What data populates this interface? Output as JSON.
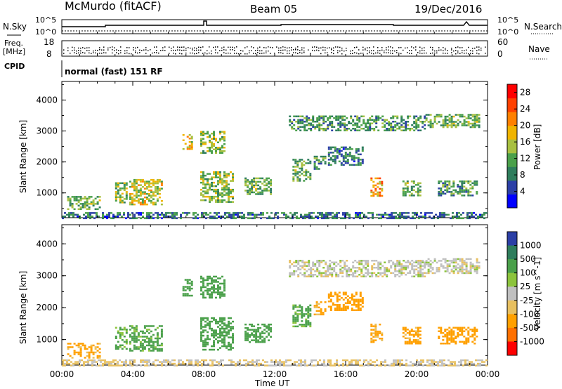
{
  "header": {
    "title": "McMurdo (fitACF)",
    "beam": "Beam 05",
    "date": "19/Dec/2016"
  },
  "aux_panels": {
    "nsky_label": "N.Sky",
    "nsearch_label": "N.Search",
    "nsky_ticks": [
      "10^5",
      "10^0"
    ],
    "nsearch_ticks": [
      "10^5",
      "10^0"
    ],
    "freq_label_1": "Freq.",
    "freq_label_2": "[MHz]",
    "freq_ticks": [
      "18",
      "8"
    ],
    "nave_label": "Nave",
    "nave_ticks": [
      "60",
      "0"
    ],
    "cpid_label": "CPID",
    "cpid_value": "normal (fast) 151 RF"
  },
  "colors": {
    "power_scale": [
      "#0000ff",
      "#2b3fa6",
      "#2e7d5c",
      "#4aa04a",
      "#a8c040",
      "#f0b400",
      "#ff8000",
      "#ff4000",
      "#ff0000"
    ],
    "velocity_scale": [
      "#2b3fa6",
      "#2e7d5c",
      "#4aa04a",
      "#8cc43c",
      "#c0c0c0",
      "#e8c060",
      "#ffa000",
      "#ff7000",
      "#ff0000"
    ]
  },
  "chart_data": [
    {
      "type": "heatmap",
      "name": "power",
      "ylabel": "Slant Range [km]",
      "yticks": [
        "1000",
        "2000",
        "3000",
        "4000"
      ],
      "ylim": [
        200,
        4600
      ],
      "xlim": [
        "00:00",
        "24:00"
      ],
      "colorbar_label": "Power [dB]",
      "colorbar_ticks": [
        "4",
        "8",
        "12",
        "16",
        "20",
        "24",
        "28"
      ],
      "colorbar_range": [
        0,
        30
      ],
      "echo_regions": [
        {
          "t0": 0.3,
          "t1": 2.2,
          "r0": 450,
          "r1": 900,
          "value": 12
        },
        {
          "t0": 3.0,
          "t1": 3.6,
          "r0": 700,
          "r1": 1400,
          "value": 14
        },
        {
          "t0": 3.8,
          "t1": 5.6,
          "r0": 650,
          "r1": 1450,
          "value": 16
        },
        {
          "t0": 6.8,
          "t1": 7.3,
          "r0": 2400,
          "r1": 2900,
          "value": 18
        },
        {
          "t0": 7.8,
          "t1": 9.2,
          "r0": 2300,
          "r1": 3000,
          "value": 14
        },
        {
          "t0": 7.8,
          "t1": 9.6,
          "r0": 700,
          "r1": 1700,
          "value": 14
        },
        {
          "t0": 10.3,
          "t1": 11.8,
          "r0": 950,
          "r1": 1500,
          "value": 12
        },
        {
          "t0": 12.8,
          "t1": 20.5,
          "r0": 3000,
          "r1": 3500,
          "value": 10
        },
        {
          "t0": 13.0,
          "t1": 14.0,
          "r0": 1400,
          "r1": 2100,
          "value": 12
        },
        {
          "t0": 14.2,
          "t1": 14.8,
          "r0": 1800,
          "r1": 2200,
          "value": 10
        },
        {
          "t0": 15.0,
          "t1": 17.0,
          "r0": 1900,
          "r1": 2500,
          "value": 8
        },
        {
          "t0": 17.4,
          "t1": 18.0,
          "r0": 900,
          "r1": 1500,
          "value": 20
        },
        {
          "t0": 19.2,
          "t1": 20.2,
          "r0": 900,
          "r1": 1400,
          "value": 12
        },
        {
          "t0": 20.5,
          "t1": 23.5,
          "r0": 3100,
          "r1": 3550,
          "value": 12
        },
        {
          "t0": 21.2,
          "t1": 23.4,
          "r0": 900,
          "r1": 1400,
          "value": 10
        },
        {
          "t0": 0.0,
          "t1": 24.0,
          "r0": 200,
          "r1": 380,
          "value": 8
        }
      ]
    },
    {
      "type": "heatmap",
      "name": "velocity",
      "ylabel": "Slant Range [km]",
      "yticks": [
        "1000",
        "2000",
        "3000",
        "4000"
      ],
      "ylim": [
        200,
        4600
      ],
      "xlim": [
        "00:00",
        "24:00"
      ],
      "xticks": [
        "00:00",
        "04:00",
        "08:00",
        "12:00",
        "16:00",
        "20:00",
        "00:00"
      ],
      "xlabel": "Time UT",
      "colorbar_label": "Velocity [m s^-1]",
      "colorbar_ticks": [
        "1000",
        "500",
        "100",
        "25",
        "-25",
        "-100",
        "-500",
        "-1000"
      ],
      "echo_regions": [
        {
          "t0": 0.3,
          "t1": 2.2,
          "r0": 450,
          "r1": 900,
          "value": -150
        },
        {
          "t0": 3.0,
          "t1": 3.6,
          "r0": 700,
          "r1": 1400,
          "value": 120
        },
        {
          "t0": 3.8,
          "t1": 5.6,
          "r0": 650,
          "r1": 1450,
          "value": 150
        },
        {
          "t0": 6.8,
          "t1": 7.3,
          "r0": 2400,
          "r1": 2900,
          "value": 300
        },
        {
          "t0": 7.8,
          "t1": 9.2,
          "r0": 2300,
          "r1": 3000,
          "value": 200
        },
        {
          "t0": 7.8,
          "t1": 9.6,
          "r0": 700,
          "r1": 1700,
          "value": 200
        },
        {
          "t0": 10.3,
          "t1": 11.8,
          "r0": 950,
          "r1": 1500,
          "value": 250
        },
        {
          "t0": 12.8,
          "t1": 20.5,
          "r0": 3000,
          "r1": 3500,
          "value": 0
        },
        {
          "t0": 13.0,
          "t1": 14.0,
          "r0": 1400,
          "r1": 2100,
          "value": 150
        },
        {
          "t0": 14.2,
          "t1": 14.8,
          "r0": 1800,
          "r1": 2200,
          "value": -150
        },
        {
          "t0": 15.0,
          "t1": 17.0,
          "r0": 1900,
          "r1": 2500,
          "value": -200
        },
        {
          "t0": 17.4,
          "t1": 18.0,
          "r0": 900,
          "r1": 1500,
          "value": -150
        },
        {
          "t0": 19.2,
          "t1": 20.2,
          "r0": 900,
          "r1": 1400,
          "value": -150
        },
        {
          "t0": 20.5,
          "t1": 23.5,
          "r0": 3100,
          "r1": 3550,
          "value": 0
        },
        {
          "t0": 21.2,
          "t1": 23.4,
          "r0": 900,
          "r1": 1400,
          "value": -200
        },
        {
          "t0": 0.0,
          "t1": 24.0,
          "r0": 200,
          "r1": 380,
          "value": -30
        }
      ]
    }
  ]
}
